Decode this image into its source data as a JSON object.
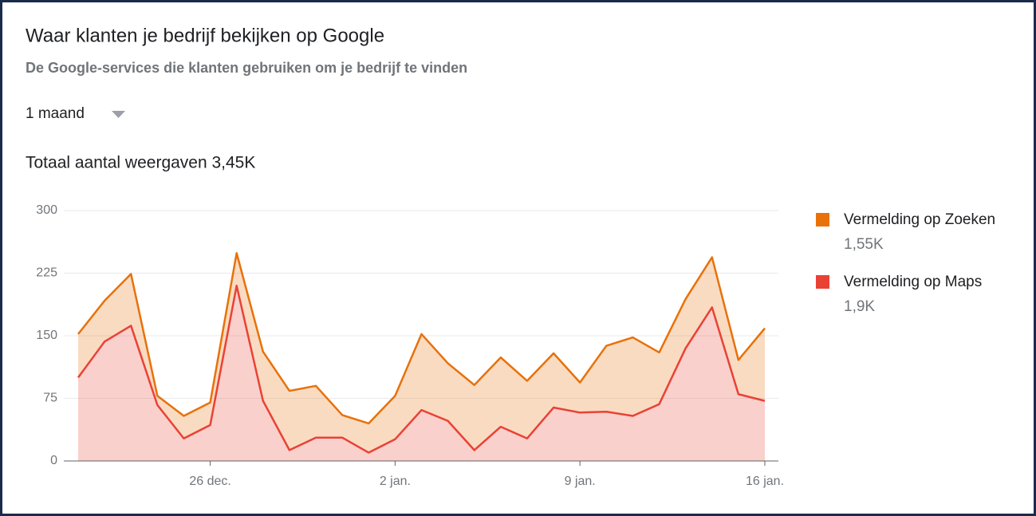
{
  "title": "Waar klanten je bedrijf bekijken op Google",
  "subtitle": "De Google-services die klanten gebruiken om je bedrijf te vinden",
  "period": "1 maand",
  "total": "Totaal aantal weergaven 3,45K",
  "chart_data": {
    "type": "stacked_area",
    "categories": [
      null,
      null,
      null,
      null,
      null,
      "26 dec.",
      null,
      null,
      null,
      null,
      null,
      null,
      "2 jan.",
      null,
      null,
      null,
      null,
      null,
      null,
      "9 jan.",
      null,
      null,
      null,
      null,
      null,
      null,
      "16 jan."
    ],
    "series": [
      {
        "name": "Vermelding op Zoeken",
        "total_label": "1,55K",
        "color": "#e8710a",
        "values": [
          52,
          49,
          62,
          11,
          27,
          27,
          39,
          59,
          71,
          62,
          27,
          35,
          52,
          91,
          69,
          78,
          83,
          69,
          65,
          36,
          79,
          94,
          62,
          59,
          60,
          41,
          87
        ]
      },
      {
        "name": "Vermelding op Maps",
        "total_label": "1,9K",
        "color": "#e94235",
        "values": [
          100,
          143,
          162,
          67,
          27,
          43,
          210,
          72,
          13,
          28,
          28,
          10,
          26,
          61,
          48,
          13,
          41,
          27,
          64,
          58,
          59,
          54,
          68,
          135,
          184,
          80,
          72
        ]
      }
    ],
    "ylim": [
      0,
      300
    ],
    "yticks": [
      0,
      75,
      150,
      225,
      300
    ],
    "grid": true,
    "legend": "right"
  }
}
